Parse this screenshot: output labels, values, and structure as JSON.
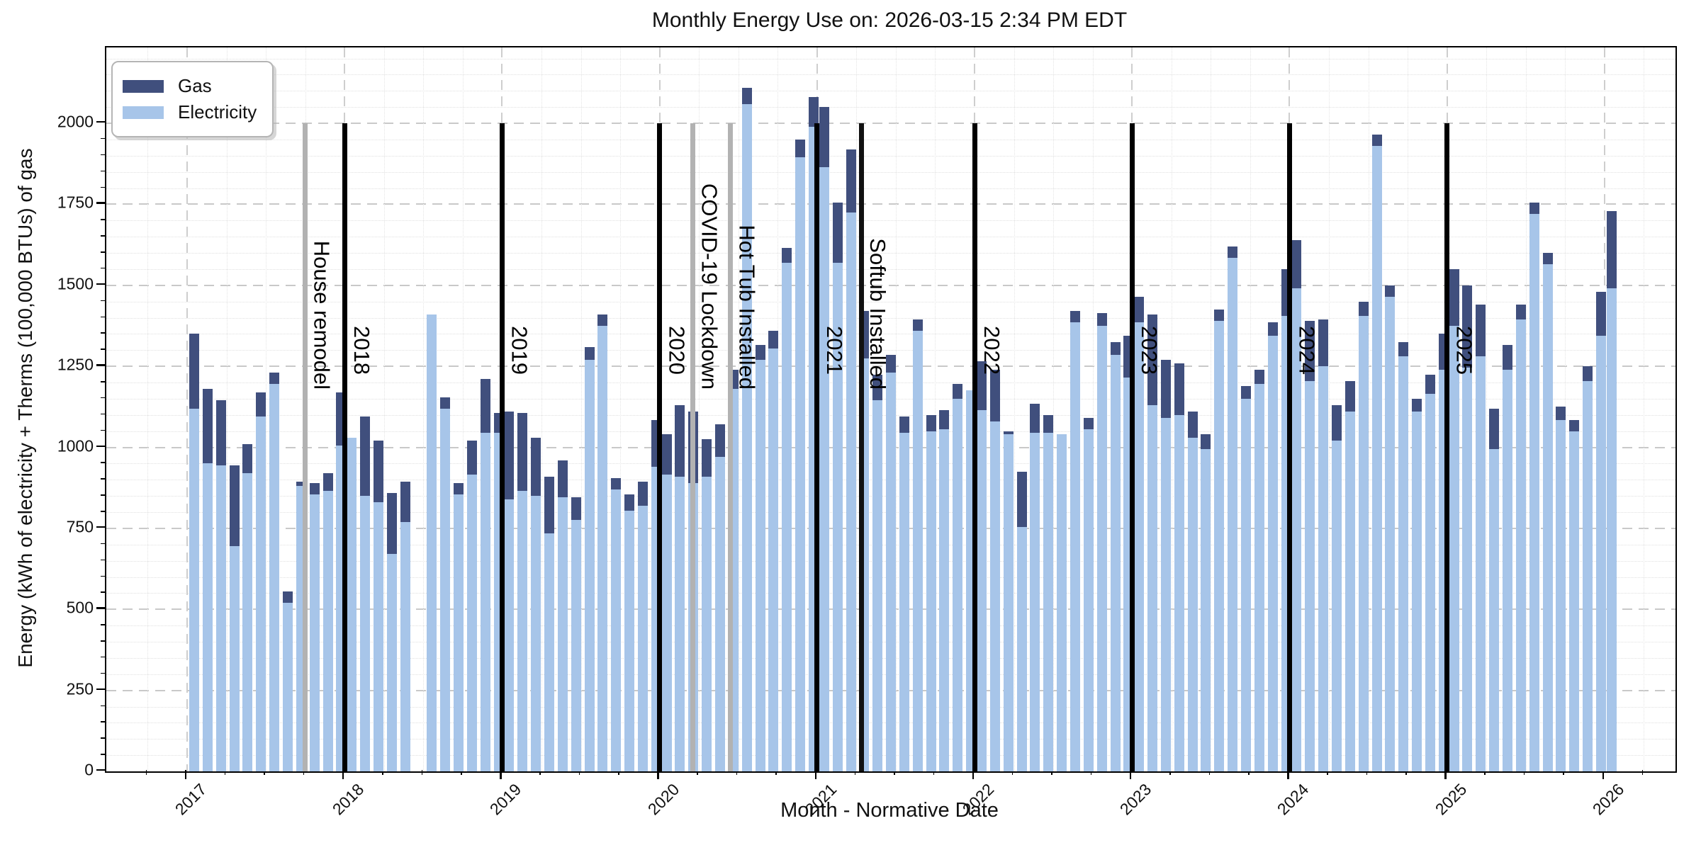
{
  "title": "Monthly Energy Use on: 2026-03-15 2:34 PM EDT",
  "legend": {
    "items": [
      {
        "label": "Gas",
        "color": "#404f7d"
      },
      {
        "label": "Electricity",
        "color": "#a7c5e9"
      }
    ]
  },
  "axes": {
    "x_label": "Month - Normative Date",
    "y_label": "Energy (kWh of electricity + Therms (100,000 BTUs) of gas",
    "x_tick_years": [
      "2017",
      "2018",
      "2019",
      "2020",
      "2021",
      "2022",
      "2023",
      "2024",
      "2025",
      "2026"
    ],
    "y_ticks": [
      0,
      250,
      500,
      750,
      1000,
      1250,
      1500,
      1750,
      2000
    ]
  },
  "annotations": {
    "year_lines": [
      {
        "label": "2018",
        "year": 2018,
        "color": "#000000"
      },
      {
        "label": "2019",
        "year": 2019,
        "color": "#000000"
      },
      {
        "label": "2020",
        "year": 2020,
        "color": "#000000"
      },
      {
        "label": "2021",
        "year": 2021,
        "color": "#000000"
      },
      {
        "label": "2022",
        "year": 2022,
        "color": "#000000"
      },
      {
        "label": "2023",
        "year": 2023,
        "color": "#000000"
      },
      {
        "label": "2024",
        "year": 2024,
        "color": "#000000"
      },
      {
        "label": "2025",
        "year": 2025,
        "color": "#000000"
      }
    ],
    "events": [
      {
        "label": "House remodel",
        "date_x": 2017.75,
        "line_color": "#b2b2b2"
      },
      {
        "label": "COVID-19 Lockdown",
        "date_x": 2020.21,
        "line_color": "#b2b2b2"
      },
      {
        "label": "Hot Tub Installed",
        "date_x": 2020.45,
        "line_color": "#b2b2b2"
      },
      {
        "label": "Softub Installed",
        "date_x": 2021.28,
        "line_color": "#111111"
      }
    ]
  },
  "chart_data": {
    "type": "bar",
    "stacked": true,
    "title": "Monthly Energy Use on: 2026-03-15 2:34 PM EDT",
    "xlabel": "Month - Normative Date",
    "ylabel": "Energy (kWh of electricity + Therms (100,000 BTUs) of gas",
    "ylim": [
      0,
      2230
    ],
    "grid": true,
    "legend_position": "upper left",
    "series_order_bottom_to_top": [
      "Electricity",
      "Gas"
    ],
    "months": [
      {
        "date": "2017-01",
        "electricity": 1120,
        "gas": 230
      },
      {
        "date": "2017-02",
        "electricity": 950,
        "gas": 230
      },
      {
        "date": "2017-03",
        "electricity": 945,
        "gas": 200
      },
      {
        "date": "2017-04",
        "electricity": 695,
        "gas": 250
      },
      {
        "date": "2017-05",
        "electricity": 920,
        "gas": 90
      },
      {
        "date": "2017-06",
        "electricity": 1095,
        "gas": 75
      },
      {
        "date": "2017-07",
        "electricity": 1195,
        "gas": 35
      },
      {
        "date": "2017-08",
        "electricity": 520,
        "gas": 35
      },
      {
        "date": "2017-09",
        "electricity": 880,
        "gas": 15
      },
      {
        "date": "2017-10",
        "electricity": 855,
        "gas": 35
      },
      {
        "date": "2017-11",
        "electricity": 865,
        "gas": 55
      },
      {
        "date": "2017-12",
        "electricity": 1005,
        "gas": 165
      },
      {
        "date": "2018-01",
        "electricity": 1030,
        "gas": 0
      },
      {
        "date": "2018-02",
        "electricity": 850,
        "gas": 245
      },
      {
        "date": "2018-03",
        "electricity": 830,
        "gas": 190
      },
      {
        "date": "2018-04",
        "electricity": 670,
        "gas": 190
      },
      {
        "date": "2018-05",
        "electricity": 770,
        "gas": 125
      },
      {
        "date": "2018-06",
        "electricity": 0,
        "gas": 0
      },
      {
        "date": "2018-07",
        "electricity": 1410,
        "gas": 0
      },
      {
        "date": "2018-08",
        "electricity": 1120,
        "gas": 35
      },
      {
        "date": "2018-09",
        "electricity": 855,
        "gas": 35
      },
      {
        "date": "2018-10",
        "electricity": 915,
        "gas": 105
      },
      {
        "date": "2018-11",
        "electricity": 1045,
        "gas": 165
      },
      {
        "date": "2018-12",
        "electricity": 1045,
        "gas": 60
      },
      {
        "date": "2019-01",
        "electricity": 840,
        "gas": 270
      },
      {
        "date": "2019-02",
        "electricity": 865,
        "gas": 240
      },
      {
        "date": "2019-03",
        "electricity": 850,
        "gas": 180
      },
      {
        "date": "2019-04",
        "electricity": 735,
        "gas": 175
      },
      {
        "date": "2019-05",
        "electricity": 845,
        "gas": 115
      },
      {
        "date": "2019-06",
        "electricity": 775,
        "gas": 70
      },
      {
        "date": "2019-07",
        "electricity": 1270,
        "gas": 40
      },
      {
        "date": "2019-08",
        "electricity": 1375,
        "gas": 35
      },
      {
        "date": "2019-09",
        "electricity": 870,
        "gas": 35
      },
      {
        "date": "2019-10",
        "electricity": 805,
        "gas": 50
      },
      {
        "date": "2019-11",
        "electricity": 820,
        "gas": 75
      },
      {
        "date": "2019-12",
        "electricity": 940,
        "gas": 145
      },
      {
        "date": "2020-01",
        "electricity": 915,
        "gas": 125
      },
      {
        "date": "2020-02",
        "electricity": 910,
        "gas": 220
      },
      {
        "date": "2020-03",
        "electricity": 890,
        "gas": 220
      },
      {
        "date": "2020-04",
        "electricity": 910,
        "gas": 115
      },
      {
        "date": "2020-05",
        "electricity": 970,
        "gas": 100
      },
      {
        "date": "2020-06",
        "electricity": 1180,
        "gas": 60
      },
      {
        "date": "2020-07",
        "electricity": 2060,
        "gas": 50
      },
      {
        "date": "2020-08",
        "electricity": 1270,
        "gas": 45
      },
      {
        "date": "2020-09",
        "electricity": 1305,
        "gas": 55
      },
      {
        "date": "2020-10",
        "electricity": 1570,
        "gas": 45
      },
      {
        "date": "2020-11",
        "electricity": 1895,
        "gas": 55
      },
      {
        "date": "2020-12",
        "electricity": 1990,
        "gas": 90
      },
      {
        "date": "2021-01",
        "electricity": 1865,
        "gas": 185
      },
      {
        "date": "2021-02",
        "electricity": 1570,
        "gas": 185
      },
      {
        "date": "2021-03",
        "electricity": 1725,
        "gas": 195
      },
      {
        "date": "2021-04",
        "electricity": 1275,
        "gas": 145
      },
      {
        "date": "2021-05",
        "electricity": 1145,
        "gas": 80
      },
      {
        "date": "2021-06",
        "electricity": 1230,
        "gas": 55
      },
      {
        "date": "2021-07",
        "electricity": 1045,
        "gas": 50
      },
      {
        "date": "2021-08",
        "electricity": 1360,
        "gas": 35
      },
      {
        "date": "2021-09",
        "electricity": 1050,
        "gas": 50
      },
      {
        "date": "2021-10",
        "electricity": 1055,
        "gas": 60
      },
      {
        "date": "2021-11",
        "electricity": 1150,
        "gas": 45
      },
      {
        "date": "2021-12",
        "electricity": 1175,
        "gas": 0
      },
      {
        "date": "2022-01",
        "electricity": 1115,
        "gas": 150
      },
      {
        "date": "2022-02",
        "electricity": 1080,
        "gas": 160
      },
      {
        "date": "2022-03",
        "electricity": 1040,
        "gas": 10
      },
      {
        "date": "2022-04",
        "electricity": 755,
        "gas": 170
      },
      {
        "date": "2022-05",
        "electricity": 1045,
        "gas": 90
      },
      {
        "date": "2022-06",
        "electricity": 1045,
        "gas": 55
      },
      {
        "date": "2022-07",
        "electricity": 1040,
        "gas": 0
      },
      {
        "date": "2022-08",
        "electricity": 1385,
        "gas": 35
      },
      {
        "date": "2022-09",
        "electricity": 1055,
        "gas": 35
      },
      {
        "date": "2022-10",
        "electricity": 1375,
        "gas": 40
      },
      {
        "date": "2022-11",
        "electricity": 1285,
        "gas": 40
      },
      {
        "date": "2022-12",
        "electricity": 1215,
        "gas": 130
      },
      {
        "date": "2023-01",
        "electricity": 1385,
        "gas": 80
      },
      {
        "date": "2023-02",
        "electricity": 1130,
        "gas": 280
      },
      {
        "date": "2023-03",
        "electricity": 1090,
        "gas": 180
      },
      {
        "date": "2023-04",
        "electricity": 1100,
        "gas": 160
      },
      {
        "date": "2023-05",
        "electricity": 1030,
        "gas": 80
      },
      {
        "date": "2023-06",
        "electricity": 995,
        "gas": 45
      },
      {
        "date": "2023-07",
        "electricity": 1390,
        "gas": 35
      },
      {
        "date": "2023-08",
        "electricity": 1585,
        "gas": 35
      },
      {
        "date": "2023-09",
        "electricity": 1150,
        "gas": 40
      },
      {
        "date": "2023-10",
        "electricity": 1195,
        "gas": 45
      },
      {
        "date": "2023-11",
        "electricity": 1345,
        "gas": 40
      },
      {
        "date": "2023-12",
        "electricity": 1405,
        "gas": 145
      },
      {
        "date": "2024-01",
        "electricity": 1490,
        "gas": 150
      },
      {
        "date": "2024-02",
        "electricity": 1205,
        "gas": 185
      },
      {
        "date": "2024-03",
        "electricity": 1250,
        "gas": 145
      },
      {
        "date": "2024-04",
        "electricity": 1020,
        "gas": 110
      },
      {
        "date": "2024-05",
        "electricity": 1110,
        "gas": 95
      },
      {
        "date": "2024-06",
        "electricity": 1405,
        "gas": 45
      },
      {
        "date": "2024-07",
        "electricity": 1930,
        "gas": 35
      },
      {
        "date": "2024-08",
        "electricity": 1465,
        "gas": 35
      },
      {
        "date": "2024-09",
        "electricity": 1280,
        "gas": 45
      },
      {
        "date": "2024-10",
        "electricity": 1110,
        "gas": 40
      },
      {
        "date": "2024-11",
        "electricity": 1165,
        "gas": 60
      },
      {
        "date": "2024-12",
        "electricity": 1240,
        "gas": 110
      },
      {
        "date": "2025-01",
        "electricity": 1375,
        "gas": 175
      },
      {
        "date": "2025-02",
        "electricity": 1245,
        "gas": 255
      },
      {
        "date": "2025-03",
        "electricity": 1280,
        "gas": 160
      },
      {
        "date": "2025-04",
        "electricity": 995,
        "gas": 125
      },
      {
        "date": "2025-05",
        "electricity": 1240,
        "gas": 75
      },
      {
        "date": "2025-06",
        "electricity": 1395,
        "gas": 45
      },
      {
        "date": "2025-07",
        "electricity": 1720,
        "gas": 35
      },
      {
        "date": "2025-08",
        "electricity": 1565,
        "gas": 35
      },
      {
        "date": "2025-09",
        "electricity": 1085,
        "gas": 40
      },
      {
        "date": "2025-10",
        "electricity": 1050,
        "gas": 35
      },
      {
        "date": "2025-11",
        "electricity": 1205,
        "gas": 45
      },
      {
        "date": "2025-12",
        "electricity": 1345,
        "gas": 135
      },
      {
        "date": "2026-01",
        "electricity": 1490,
        "gas": 240
      }
    ]
  }
}
